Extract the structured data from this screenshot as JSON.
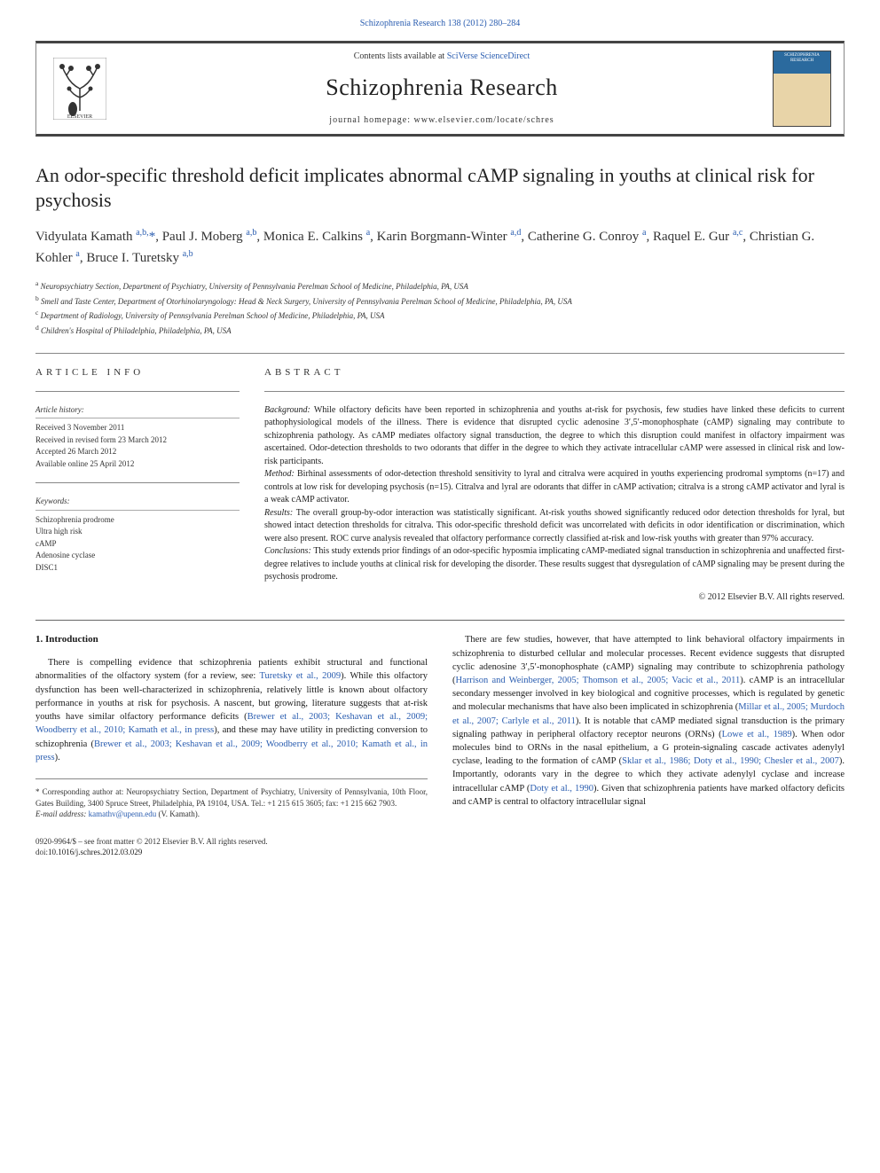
{
  "topLink": "Schizophrenia Research 138 (2012) 280–284",
  "header": {
    "contentsLine": "Contents lists available at ",
    "contentsLinkText": "SciVerse ScienceDirect",
    "journalName": "Schizophrenia Research",
    "homepagePrefix": "journal homepage: ",
    "homepageUrl": "www.elsevier.com/locate/schres",
    "coverLabel": "SCHIZOPHRENIA RESEARCH"
  },
  "article": {
    "title": "An odor-specific threshold deficit implicates abnormal cAMP signaling in youths at clinical risk for psychosis",
    "authorsHtml": "Vidyulata Kamath <sup>a,b,</sup><span class='star'>*</span>, Paul J. Moberg <sup>a,b</sup>, Monica E. Calkins <sup>a</sup>, Karin Borgmann-Winter <sup>a,d</sup>, Catherine G. Conroy <sup>a</sup>, Raquel E. Gur <sup>a,c</sup>, Christian G. Kohler <sup>a</sup>, Bruce I. Turetsky <sup>a,b</sup>",
    "affiliations": [
      {
        "sup": "a",
        "text": "Neuropsychiatry Section, Department of Psychiatry, University of Pennsylvania Perelman School of Medicine, Philadelphia, PA, USA"
      },
      {
        "sup": "b",
        "text": "Smell and Taste Center, Department of Otorhinolaryngology: Head & Neck Surgery, University of Pennsylvania Perelman School of Medicine, Philadelphia, PA, USA"
      },
      {
        "sup": "c",
        "text": "Department of Radiology, University of Pennsylvania Perelman School of Medicine, Philadelphia, PA, USA"
      },
      {
        "sup": "d",
        "text": "Children's Hospital of Philadelphia, Philadelphia, PA, USA"
      }
    ]
  },
  "info": {
    "label": "ARTICLE INFO",
    "historyHead": "Article history:",
    "history": [
      "Received 3 November 2011",
      "Received in revised form 23 March 2012",
      "Accepted 26 March 2012",
      "Available online 25 April 2012"
    ],
    "keywordsHead": "Keywords:",
    "keywords": [
      "Schizophrenia prodrome",
      "Ultra high risk",
      "cAMP",
      "Adenosine cyclase",
      "DISC1"
    ]
  },
  "abstract": {
    "label": "ABSTRACT",
    "background": "While olfactory deficits have been reported in schizophrenia and youths at-risk for psychosis, few studies have linked these deficits to current pathophysiological models of the illness. There is evidence that disrupted cyclic adenosine 3′,5′-monophosphate (cAMP) signaling may contribute to schizophrenia pathology. As cAMP mediates olfactory signal transduction, the degree to which this disruption could manifest in olfactory impairment was ascertained. Odor-detection thresholds to two odorants that differ in the degree to which they activate intracellular cAMP were assessed in clinical risk and low-risk participants.",
    "method": "Birhinal assessments of odor-detection threshold sensitivity to lyral and citralva were acquired in youths experiencing prodromal symptoms (n=17) and controls at low risk for developing psychosis (n=15). Citralva and lyral are odorants that differ in cAMP activation; citralva is a strong cAMP activator and lyral is a weak cAMP activator.",
    "results": "The overall group-by-odor interaction was statistically significant. At-risk youths showed significantly reduced odor detection thresholds for lyral, but showed intact detection thresholds for citralva. This odor-specific threshold deficit was uncorrelated with deficits in odor identification or discrimination, which were also present. ROC curve analysis revealed that olfactory performance correctly classified at-risk and low-risk youths with greater than 97% accuracy.",
    "conclusions": "This study extends prior findings of an odor-specific hyposmia implicating cAMP-mediated signal transduction in schizophrenia and unaffected first-degree relatives to include youths at clinical risk for developing the disorder. These results suggest that dysregulation of cAMP signaling may be present during the psychosis prodrome.",
    "copyright": "© 2012 Elsevier B.V. All rights reserved."
  },
  "introHead": "1. Introduction",
  "introP1a": "There is compelling evidence that schizophrenia patients exhibit structural and functional abnormalities of the olfactory system (for a review, see: ",
  "link_turetsky": "Turetsky et al., 2009",
  "introP1b": "). While this olfactory dysfunction has been well-characterized in schizophrenia, relatively little is known about olfactory performance in youths at risk for psychosis. A nascent, but growing, literature suggests that at-risk youths have similar olfactory performance deficits (",
  "link_brewer": "Brewer et al., 2003; Keshavan et al., 2009; Woodberry et al., 2010; Kamath et al., in press",
  "introP1c": "), and these may have utility in predicting conversion to schizophrenia (",
  "link_brewer2": "Brewer et al., 2003; Keshavan et al., 2009; Woodberry et al., 2010; Kamath et al., in press",
  "introP1d": ").",
  "introP2a": "There are few studies, however, that have attempted to link behavioral olfactory impairments in schizophrenia to disturbed cellular and molecular processes. Recent evidence suggests that disrupted cyclic adenosine 3′,5′-monophosphate (cAMP) signaling may contribute to schizophrenia pathology (",
  "link_harrison": "Harrison and Weinberger, 2005; Thomson et al., 2005; Vacic et al., 2011",
  "introP2b": "). cAMP is an intracellular secondary messenger involved in key biological and cognitive processes, which is regulated by genetic and molecular mechanisms that have also been implicated in schizophrenia (",
  "link_millar": "Millar et al., 2005; Murdoch et al., 2007; Carlyle et al., 2011",
  "introP2c": "). It is notable that cAMP mediated signal transduction is the primary signaling pathway in peripheral olfactory receptor neurons (ORNs) (",
  "link_lowe": "Lowe et al., 1989",
  "introP2d": "). When odor molecules bind to ORNs in the nasal epithelium, a G protein-signaling cascade activates adenylyl cyclase, leading to the formation of cAMP (",
  "link_sklar": "Sklar et al., 1986; Doty et al., 1990; Chesler et al., 2007",
  "introP2e": "). Importantly, odorants vary in the degree to which they activate adenylyl cyclase and increase intracellular cAMP (",
  "link_doty": "Doty et al., 1990",
  "introP2f": "). Given that schizophrenia patients have marked olfactory deficits and cAMP is central to olfactory intracellular signal",
  "corr": {
    "starNote": "* Corresponding author at: Neuropsychiatry Section, Department of Psychiatry, University of Pennsylvania, 10th Floor, Gates Building, 3400 Spruce Street, Philadelphia, PA 19104, USA. Tel.: +1 215 615 3605; fax: +1 215 662 7903.",
    "emailLabel": "E-mail address: ",
    "email": "kamathv@upenn.edu",
    "emailSuffix": " (V. Kamath)."
  },
  "footer": {
    "line1": "0920-9964/$ – see front matter © 2012 Elsevier B.V. All rights reserved.",
    "line2": "doi:10.1016/j.schres.2012.03.029"
  },
  "colors": {
    "link": "#2a5db0",
    "border": "#888888",
    "text": "#1a1a1a"
  }
}
